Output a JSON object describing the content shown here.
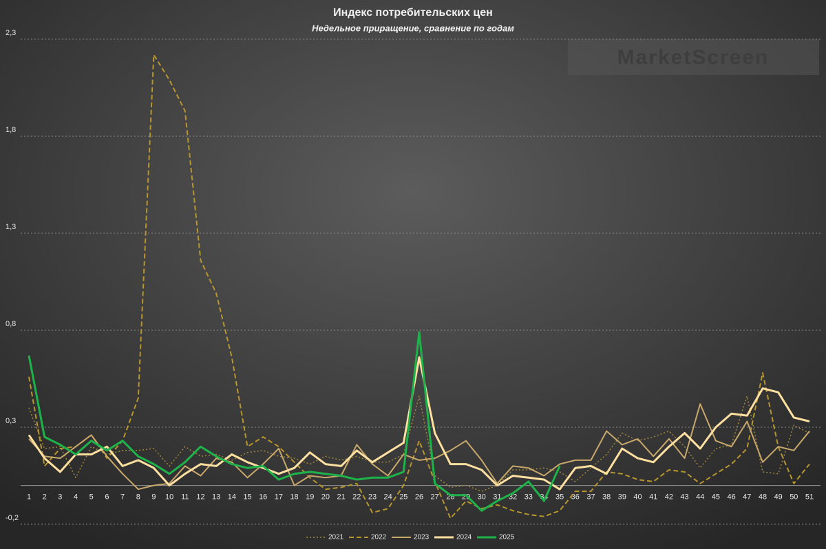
{
  "chart_data": {
    "type": "line",
    "title": "Индекс потребительских цен",
    "subtitle": "Недельное приращение, сравнение по годам",
    "watermark": "MarketScreen",
    "categories": [
      "1",
      "2",
      "3",
      "4",
      "5",
      "6",
      "7",
      "8",
      "9",
      "10",
      "11",
      "12",
      "13",
      "14",
      "15",
      "16",
      "17",
      "18",
      "19",
      "20",
      "21",
      "22",
      "23",
      "24",
      "25",
      "26",
      "27",
      "28",
      "29",
      "30",
      "31",
      "32",
      "33",
      "34",
      "35",
      "36",
      "37",
      "38",
      "39",
      "40",
      "41",
      "42",
      "43",
      "44",
      "45",
      "46",
      "47",
      "48",
      "49",
      "50",
      "51"
    ],
    "ylim": [
      -0.2,
      2.3
    ],
    "yticks": [
      {
        "value": -0.2,
        "label": "-0,2"
      },
      {
        "value": 0.3,
        "label": "0,3"
      },
      {
        "value": 0.8,
        "label": "0,8"
      },
      {
        "value": 1.3,
        "label": "1,3"
      },
      {
        "value": 1.8,
        "label": "1,8"
      },
      {
        "value": 2.3,
        "label": "2,3"
      }
    ],
    "grid": true,
    "legend": "bottom",
    "series": [
      {
        "name": "2021",
        "color": "#a48a3c",
        "style": "dotted",
        "linewidth": 1.5,
        "values": [
          0.4,
          0.19,
          0.2,
          0.04,
          0.2,
          0.16,
          0.18,
          0.18,
          0.19,
          0.1,
          0.2,
          0.15,
          0.16,
          0.13,
          0.17,
          0.18,
          0.15,
          0.14,
          0.11,
          0.15,
          0.13,
          0.15,
          0.12,
          0.12,
          0.16,
          0.46,
          0.05,
          -0.01,
          0.0,
          -0.03,
          0.0,
          0.08,
          0.08,
          0.09,
          0.07,
          0.02,
          0.09,
          0.16,
          0.27,
          0.23,
          0.25,
          0.28,
          0.2,
          0.09,
          0.19,
          0.21,
          0.46,
          0.07,
          0.06,
          0.31,
          0.27
        ]
      },
      {
        "name": "2022",
        "color": "#b8962e",
        "style": "dashed",
        "linewidth": 2,
        "values": [
          0.56,
          0.1,
          0.19,
          0.2,
          0.26,
          0.14,
          0.23,
          0.45,
          2.22,
          2.09,
          1.93,
          1.16,
          0.99,
          0.66,
          0.2,
          0.25,
          0.2,
          0.12,
          0.04,
          -0.02,
          -0.01,
          0.01,
          -0.14,
          -0.12,
          0.0,
          0.23,
          0.02,
          -0.17,
          -0.08,
          -0.12,
          -0.1,
          -0.13,
          -0.15,
          -0.16,
          -0.13,
          -0.03,
          -0.03,
          0.07,
          0.06,
          0.03,
          0.02,
          0.08,
          0.07,
          0.01,
          0.06,
          0.11,
          0.19,
          0.58,
          0.2,
          0.01,
          0.11
        ]
      },
      {
        "name": "2023",
        "color": "#c9a86c",
        "style": "solid",
        "linewidth": 2,
        "values": [
          0.24,
          0.15,
          0.14,
          0.2,
          0.26,
          0.15,
          0.06,
          -0.02,
          0.0,
          0.01,
          0.1,
          0.05,
          0.14,
          0.12,
          0.04,
          0.11,
          0.19,
          0.0,
          0.05,
          0.04,
          0.05,
          0.21,
          0.11,
          0.05,
          0.16,
          0.13,
          0.14,
          0.18,
          0.23,
          0.13,
          0.01,
          0.1,
          0.09,
          0.05,
          0.11,
          0.13,
          0.13,
          0.28,
          0.21,
          0.24,
          0.15,
          0.24,
          0.14,
          0.42,
          0.23,
          0.2,
          0.33,
          0.12,
          0.2,
          0.18,
          0.28
        ]
      },
      {
        "name": "2024",
        "color": "#ffe0a0",
        "style": "solid",
        "linewidth": 3,
        "values": [
          0.26,
          0.14,
          0.07,
          0.16,
          0.16,
          0.2,
          0.1,
          0.13,
          0.09,
          0.0,
          0.06,
          0.11,
          0.1,
          0.16,
          0.12,
          0.09,
          0.06,
          0.09,
          0.17,
          0.11,
          0.1,
          0.18,
          0.12,
          0.17,
          0.22,
          0.66,
          0.27,
          0.11,
          0.11,
          0.08,
          0.0,
          0.05,
          0.04,
          0.03,
          -0.02,
          0.09,
          0.1,
          0.06,
          0.19,
          0.14,
          0.12,
          0.2,
          0.27,
          0.19,
          0.3,
          0.37,
          0.36,
          0.5,
          0.48,
          0.35,
          0.33
        ]
      },
      {
        "name": "2025",
        "color": "#1db34a",
        "style": "solid",
        "linewidth": 3,
        "values": [
          0.67,
          0.25,
          0.21,
          0.16,
          0.23,
          0.18,
          0.23,
          0.15,
          0.11,
          0.06,
          0.12,
          0.2,
          0.15,
          0.11,
          0.09,
          0.1,
          0.03,
          0.06,
          0.07,
          0.06,
          0.05,
          0.03,
          0.04,
          0.04,
          0.07,
          0.79,
          0.01,
          -0.05,
          -0.05,
          -0.13,
          -0.08,
          -0.04,
          0.02,
          -0.08,
          0.1,
          null,
          null,
          null,
          null,
          null,
          null,
          null,
          null,
          null,
          null,
          null,
          null,
          null,
          null,
          null,
          null
        ]
      }
    ]
  }
}
